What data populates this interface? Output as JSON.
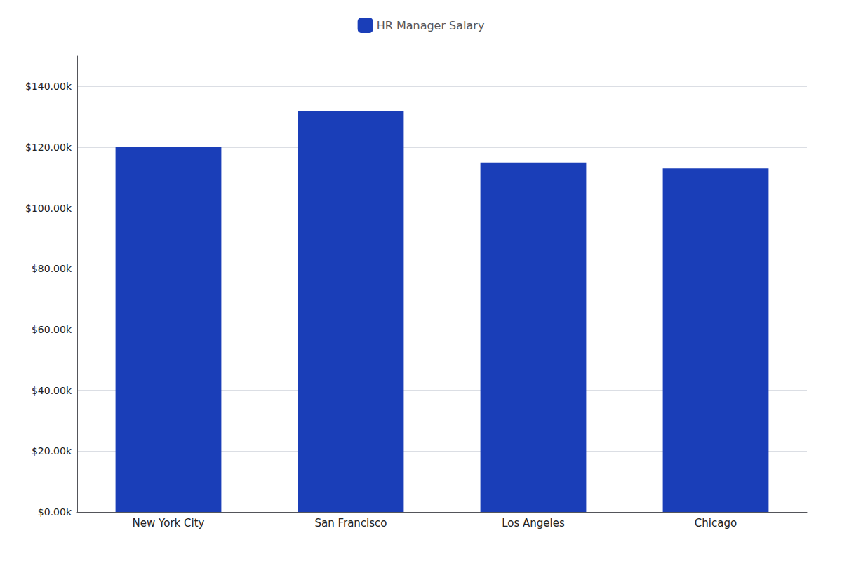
{
  "chart_data": {
    "type": "bar",
    "categories": [
      "New York City",
      "San Francisco",
      "Los Angeles",
      "Chicago"
    ],
    "values": [
      120000,
      132000,
      115000,
      113000
    ],
    "color": "#1a3eb8",
    "series": [
      {
        "name": "HR Manager Salary",
        "color": "#1a3eb8",
        "values": [
          120000,
          132000,
          115000,
          113000
        ]
      }
    ],
    "ylim": [
      0,
      150000
    ],
    "yticks": [
      {
        "value": 0,
        "label": "$0.00k"
      },
      {
        "value": 20000,
        "label": "$20.00k"
      },
      {
        "value": 40000,
        "label": "$40.00k"
      },
      {
        "value": 60000,
        "label": "$60.00k"
      },
      {
        "value": 80000,
        "label": "$80.00k"
      },
      {
        "value": 100000,
        "label": "$100.00k"
      },
      {
        "value": 120000,
        "label": "$120.00k"
      },
      {
        "value": 140000,
        "label": "$140.00k"
      }
    ],
    "grid": true,
    "legend": "top"
  }
}
